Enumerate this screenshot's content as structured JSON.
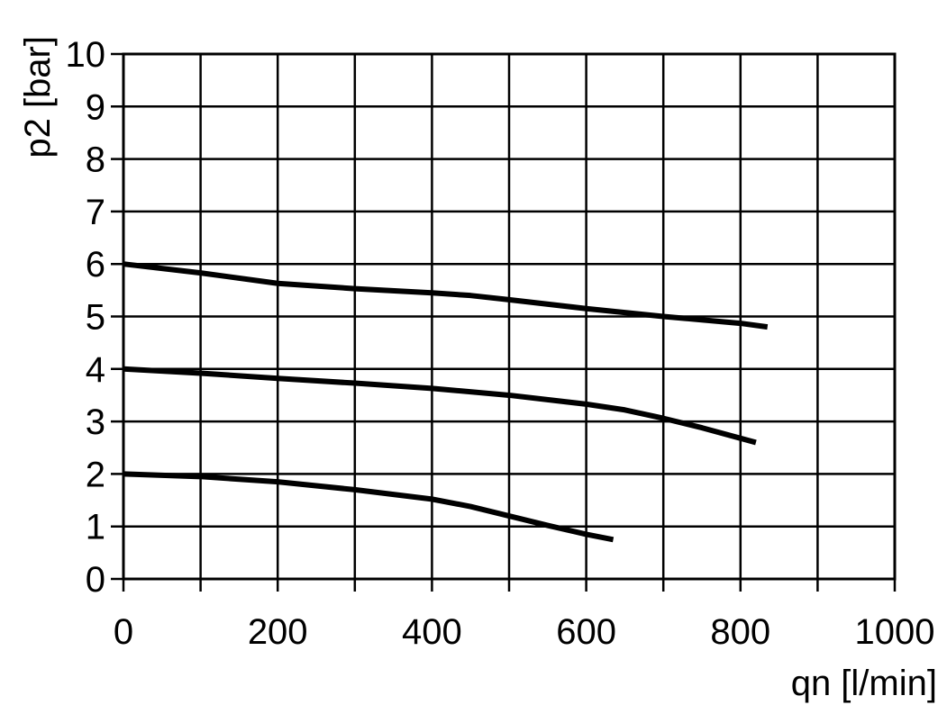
{
  "chart_data": {
    "type": "line",
    "title": "",
    "xlabel": "qn [l/min]",
    "ylabel": "p2 [bar]",
    "xlim": [
      0,
      1000
    ],
    "ylim": [
      0,
      10
    ],
    "x_ticks": [
      0,
      100,
      200,
      300,
      400,
      500,
      600,
      700,
      800,
      900,
      1000
    ],
    "x_tick_labels": [
      "0",
      "",
      "200",
      "",
      "400",
      "",
      "600",
      "",
      "800",
      "",
      "1000"
    ],
    "y_ticks": [
      0,
      1,
      2,
      3,
      4,
      5,
      6,
      7,
      8,
      9,
      10
    ],
    "y_tick_labels": [
      "0",
      "1",
      "2",
      "3",
      "4",
      "5",
      "6",
      "7",
      "8",
      "9",
      "10"
    ],
    "grid": true,
    "legend": "none",
    "line_color": "#000000",
    "series": [
      {
        "x": [
          0,
          100,
          200,
          300,
          400,
          450,
          500,
          600,
          700,
          800,
          835
        ],
        "y": [
          6.0,
          5.83,
          5.63,
          5.53,
          5.45,
          5.4,
          5.32,
          5.15,
          5.0,
          4.87,
          4.8
        ]
      },
      {
        "x": [
          0,
          100,
          200,
          300,
          400,
          500,
          600,
          650,
          700,
          750,
          820
        ],
        "y": [
          4.0,
          3.92,
          3.82,
          3.73,
          3.63,
          3.5,
          3.33,
          3.22,
          3.06,
          2.88,
          2.6
        ]
      },
      {
        "x": [
          0,
          100,
          200,
          300,
          400,
          450,
          500,
          550,
          600,
          635
        ],
        "y": [
          2.0,
          1.95,
          1.85,
          1.7,
          1.52,
          1.38,
          1.2,
          1.02,
          0.85,
          0.75
        ]
      }
    ]
  }
}
